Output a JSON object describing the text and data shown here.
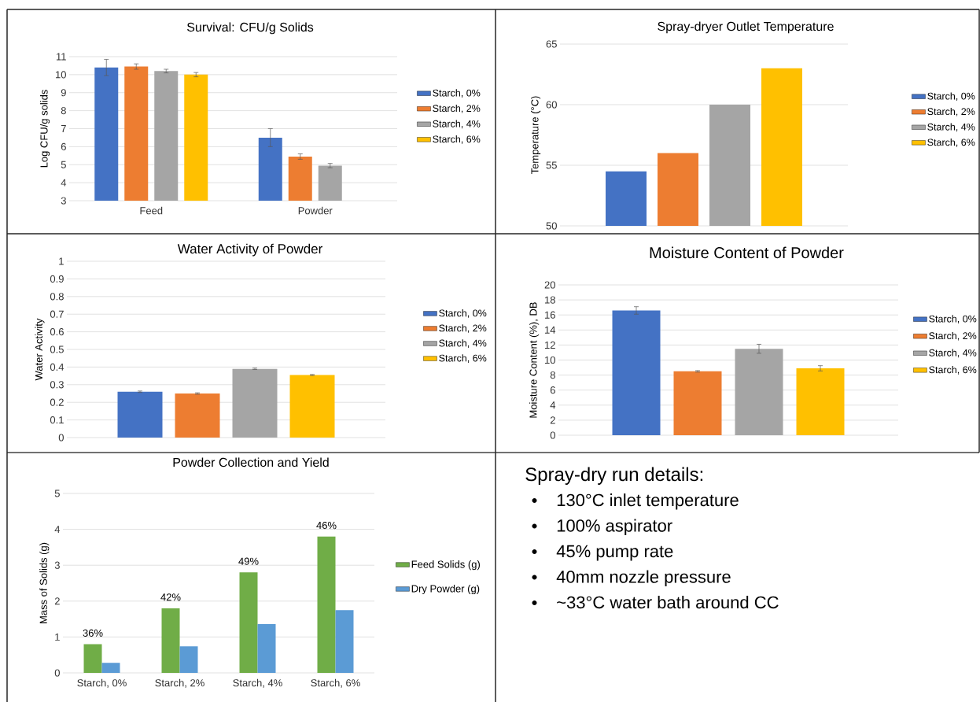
{
  "chart_data": [
    {
      "type": "bar",
      "title": "Survival: CFU/g Solids",
      "ylabel": "Log CFU/g solids",
      "categories": [
        "Feed",
        "Powder"
      ],
      "ylim": [
        3,
        11
      ],
      "yticks": [
        3,
        4,
        5,
        6,
        7,
        8,
        9,
        10,
        11
      ],
      "grid": "y",
      "legend": "right",
      "series": [
        {
          "name": "Starch, 0%",
          "color": "#4472c4",
          "values": [
            10.4,
            6.5
          ],
          "errors": [
            0.45,
            0.5
          ]
        },
        {
          "name": "Starch, 2%",
          "color": "#ed7d31",
          "values": [
            10.45,
            5.45
          ],
          "errors": [
            0.15,
            0.15
          ]
        },
        {
          "name": "Starch, 4%",
          "color": "#a5a5a5",
          "values": [
            10.2,
            4.95
          ],
          "errors": [
            0.1,
            0.12
          ]
        },
        {
          "name": "Starch, 6%",
          "color": "#ffc000",
          "values": [
            10.0,
            null
          ],
          "errors": [
            0.12,
            null
          ]
        }
      ]
    },
    {
      "type": "bar",
      "title": "Spray-dryer Outlet Temperature",
      "ylabel": "Temperature (°C)",
      "categories": [
        null
      ],
      "ylim": [
        50,
        65
      ],
      "yticks": [
        50,
        55,
        60,
        65
      ],
      "grid": "y",
      "legend": "right",
      "series": [
        {
          "name": "Starch, 0%",
          "color": "#4472c4",
          "values": [
            54.5
          ]
        },
        {
          "name": "Starch, 2%",
          "color": "#ed7d31",
          "values": [
            56
          ]
        },
        {
          "name": "Starch, 4%",
          "color": "#a5a5a5",
          "values": [
            60
          ]
        },
        {
          "name": "Starch, 6%",
          "color": "#ffc000",
          "values": [
            63
          ]
        }
      ]
    },
    {
      "type": "bar",
      "title": "Water Activity of Powder",
      "ylabel": "Water Activity",
      "categories": [
        null
      ],
      "ylim": [
        0,
        1
      ],
      "yticks": [
        0,
        0.1,
        0.2,
        0.3,
        0.4,
        0.5,
        0.6,
        0.7,
        0.8,
        0.9,
        1
      ],
      "grid": "y",
      "legend": "right",
      "series": [
        {
          "name": "Starch, 0%",
          "color": "#4472c4",
          "values": [
            0.26
          ],
          "errors": [
            0.004
          ]
        },
        {
          "name": "Starch, 2%",
          "color": "#ed7d31",
          "values": [
            0.25
          ],
          "errors": [
            0.004
          ]
        },
        {
          "name": "Starch, 4%",
          "color": "#a5a5a5",
          "values": [
            0.39
          ],
          "errors": [
            0.004
          ]
        },
        {
          "name": "Starch, 6%",
          "color": "#ffc000",
          "values": [
            0.355
          ],
          "errors": [
            0.003
          ]
        }
      ]
    },
    {
      "type": "bar",
      "title": "Moisture Content of Powder",
      "ylabel": "Moisture Content (%), DB",
      "categories": [
        null
      ],
      "ylim": [
        0,
        20
      ],
      "yticks": [
        0,
        2,
        4,
        6,
        8,
        10,
        12,
        14,
        16,
        18,
        20
      ],
      "grid": "y",
      "legend": "right",
      "series": [
        {
          "name": "Starch, 0%",
          "color": "#4472c4",
          "values": [
            16.6
          ],
          "errors": [
            0.5
          ]
        },
        {
          "name": "Starch, 2%",
          "color": "#ed7d31",
          "values": [
            8.5
          ],
          "errors": [
            0.1
          ]
        },
        {
          "name": "Starch, 4%",
          "color": "#a5a5a5",
          "values": [
            11.5
          ],
          "errors": [
            0.6
          ]
        },
        {
          "name": "Starch, 6%",
          "color": "#ffc000",
          "values": [
            8.9
          ],
          "errors": [
            0.35
          ]
        }
      ]
    },
    {
      "type": "bar",
      "title": "Powder Collection and Yield",
      "ylabel": "Mass of Solids (g)",
      "categories": [
        "Starch, 0%",
        "Starch, 2%",
        "Starch, 4%",
        "Starch, 6%"
      ],
      "ylim": [
        0,
        5
      ],
      "yticks": [
        0,
        1,
        2,
        3,
        4,
        5
      ],
      "grid": "y",
      "legend": "right",
      "series": [
        {
          "name": "Feed Solids (g)",
          "color": "#70ad47",
          "values": [
            0.8,
            1.8,
            2.8,
            3.8
          ]
        },
        {
          "name": "Dry Powder (g)",
          "color": "#5b9bd5",
          "values": [
            0.28,
            0.74,
            1.36,
            1.75
          ]
        }
      ],
      "annotations": [
        {
          "text": "36%",
          "x": "Starch, 0%",
          "y": 0.8
        },
        {
          "text": "42%",
          "x": "Starch, 2%",
          "y": 1.8
        },
        {
          "text": "49%",
          "x": "Starch, 4%",
          "y": 2.8
        },
        {
          "text": "46%",
          "x": "Starch, 6%",
          "y": 3.8
        }
      ]
    },
    {
      "type": "other",
      "title": "Spray-dry run details:",
      "annotations": [
        "130°C inlet temperature",
        "100% aspirator",
        "45% pump rate",
        "40mm nozzle pressure",
        "~33°C water bath around CC"
      ]
    }
  ]
}
